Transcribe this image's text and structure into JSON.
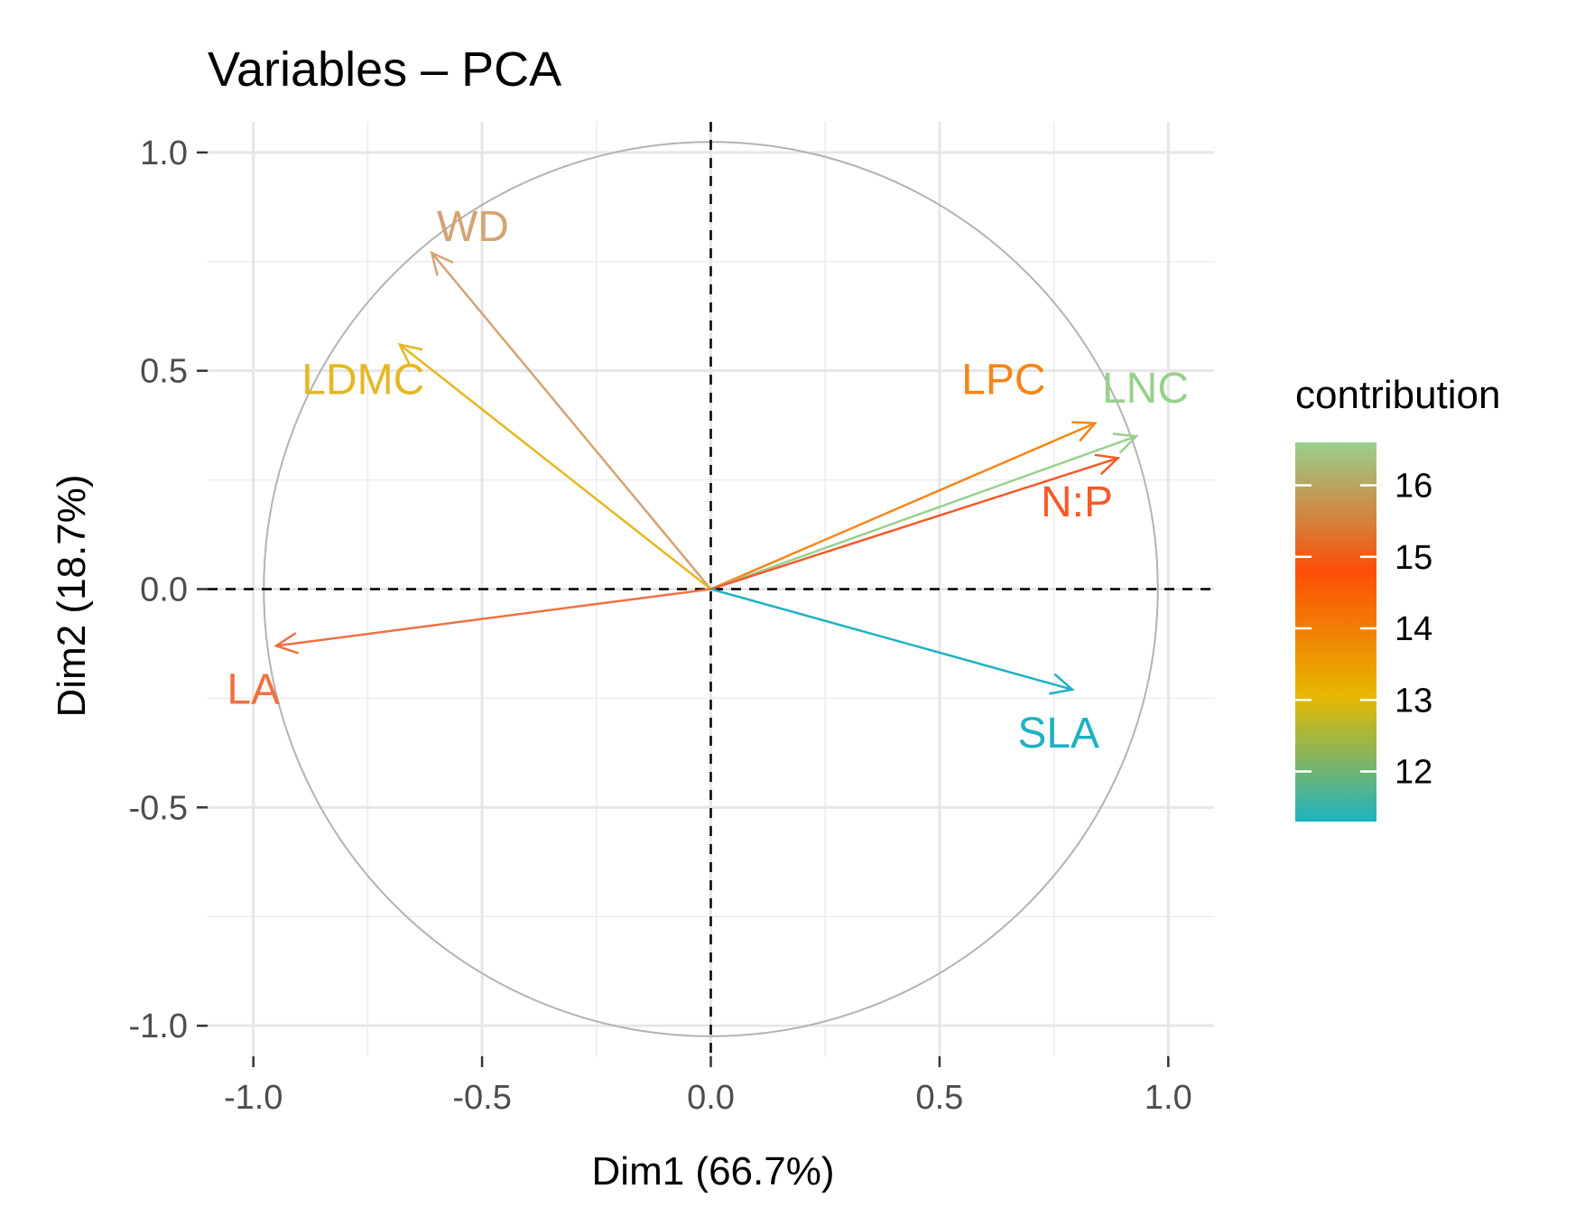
{
  "chart_data": {
    "type": "scatter",
    "subtype": "pca-variable-correlation-circle",
    "title": "Variables – PCA",
    "xlabel": "Dim1 (66.7%)",
    "ylabel": "Dim2 (18.7%)",
    "xlim": [
      -1.1,
      1.1
    ],
    "ylim": [
      -1.07,
      1.07
    ],
    "x_ticks": [
      -1.0,
      -0.5,
      0.0,
      0.5,
      1.0
    ],
    "x_tick_labels": [
      "-1.0",
      "-0.5",
      "0.0",
      "0.5",
      "1.0"
    ],
    "y_ticks": [
      -1.0,
      -0.5,
      0.0,
      0.5,
      1.0
    ],
    "y_tick_labels": [
      "-1.0",
      "-0.5",
      "0.0",
      "0.5",
      "1.0"
    ],
    "grid": true,
    "unit_circle": true,
    "reference_lines": [
      0,
      0
    ],
    "variables": [
      {
        "name": "WD",
        "x": -0.61,
        "y": 0.77,
        "contribution": 15.9,
        "color": "#D4A373",
        "label_x": -0.52,
        "label_y": 0.83
      },
      {
        "name": "LDMC",
        "x": -0.68,
        "y": 0.56,
        "contribution": 13.3,
        "color": "#E6B722",
        "label_x": -0.76,
        "label_y": 0.48
      },
      {
        "name": "LPC",
        "x": 0.84,
        "y": 0.38,
        "contribution": 14.2,
        "color": "#F58518",
        "label_x": 0.64,
        "label_y": 0.48
      },
      {
        "name": "LNC",
        "x": 0.93,
        "y": 0.35,
        "contribution": 16.5,
        "color": "#98D08C",
        "label_x": 0.95,
        "label_y": 0.46
      },
      {
        "name": "N:P",
        "x": 0.89,
        "y": 0.3,
        "contribution": 15.0,
        "color": "#F55A29",
        "label_x": 0.8,
        "label_y": 0.2
      },
      {
        "name": "LA",
        "x": -0.95,
        "y": -0.13,
        "contribution": 14.8,
        "color": "#F07040",
        "label_x": -1.0,
        "label_y": -0.23
      },
      {
        "name": "SLA",
        "x": 0.79,
        "y": -0.23,
        "contribution": 11.4,
        "color": "#1FB2C2",
        "label_x": 0.76,
        "label_y": -0.33
      }
    ],
    "legend": {
      "title": "contribution",
      "position": "right",
      "range": [
        11.3,
        16.6
      ],
      "ticks": [
        12,
        13,
        14,
        15,
        16
      ],
      "tick_labels": [
        "12",
        "13",
        "14",
        "15",
        "16"
      ],
      "gradient": [
        "#1FB2C2",
        "#E6B800",
        "#FC4E07",
        "#98D08C"
      ]
    }
  }
}
